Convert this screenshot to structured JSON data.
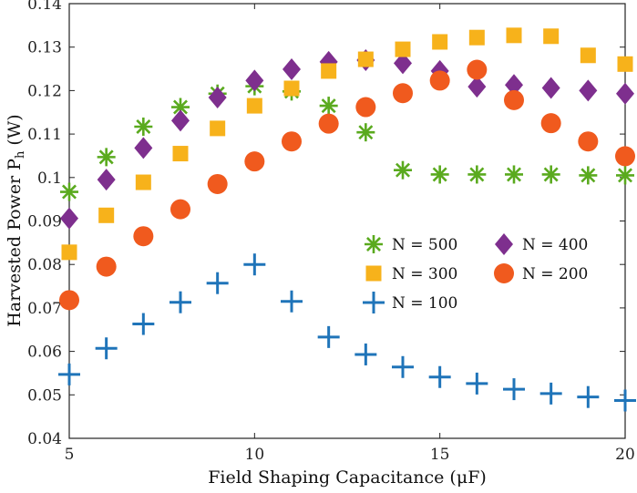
{
  "chart_data": {
    "type": "scatter",
    "title": "",
    "xlabel": "Field Shaping Capacitance (μF)",
    "ylabel": "Harvested Power P",
    "ylabel_subscript": "h",
    "ylabel_unit": "(W)",
    "xlim": [
      5,
      20
    ],
    "ylim": [
      0.04,
      0.14
    ],
    "xticks": [
      5,
      10,
      15,
      20
    ],
    "xtick_labels": [
      "5",
      "10",
      "15",
      "20"
    ],
    "yticks": [
      0.04,
      0.05,
      0.06,
      0.07,
      0.08,
      0.09,
      0.1,
      0.11,
      0.12,
      0.13,
      0.14
    ],
    "ytick_labels": [
      "0.04",
      "0.05",
      "0.06",
      "0.07",
      "0.08",
      "0.09",
      "0.1",
      "0.11",
      "0.12",
      "0.13",
      "0.14"
    ],
    "grid": false,
    "legend_position": "center-right",
    "series": [
      {
        "name": "N = 500",
        "marker": "asterisk",
        "color": "#5aaa1e",
        "x": [
          5,
          6,
          7,
          8,
          9,
          10,
          11,
          12,
          13,
          14,
          15,
          16,
          17,
          18,
          19,
          20
        ],
        "values": [
          0.0967,
          0.1047,
          0.1117,
          0.1162,
          0.1193,
          0.121,
          0.1198,
          0.1165,
          0.1104,
          0.1017,
          0.1007,
          0.1007,
          0.1007,
          0.1007,
          0.1005,
          0.1005
        ]
      },
      {
        "name": "N = 400",
        "marker": "diamond",
        "color": "#7e2f8e",
        "x": [
          5,
          6,
          7,
          8,
          9,
          10,
          11,
          12,
          13,
          14,
          15,
          16,
          17,
          18,
          19,
          20
        ],
        "values": [
          0.0906,
          0.0995,
          0.1068,
          0.1131,
          0.1184,
          0.1223,
          0.1249,
          0.1266,
          0.127,
          0.1263,
          0.1245,
          0.1209,
          0.1213,
          0.1206,
          0.12,
          0.1193
        ]
      },
      {
        "name": "N = 300",
        "marker": "square",
        "color": "#f7b21b",
        "x": [
          5,
          6,
          7,
          8,
          9,
          10,
          11,
          12,
          13,
          14,
          15,
          16,
          17,
          18,
          19,
          20
        ],
        "values": [
          0.0828,
          0.0913,
          0.0989,
          0.1055,
          0.1113,
          0.1165,
          0.1205,
          0.1245,
          0.1272,
          0.1295,
          0.1312,
          0.1322,
          0.1327,
          0.1325,
          0.1281,
          0.1261
        ]
      },
      {
        "name": "N = 200",
        "marker": "circle",
        "color": "#f05a1e",
        "x": [
          5,
          6,
          7,
          8,
          9,
          10,
          11,
          12,
          13,
          14,
          15,
          16,
          17,
          18,
          19,
          20
        ],
        "values": [
          0.0718,
          0.0795,
          0.0865,
          0.0927,
          0.0985,
          0.1037,
          0.1083,
          0.1124,
          0.1162,
          0.1194,
          0.1223,
          0.1248,
          0.1178,
          0.1125,
          0.1083,
          0.1049
        ]
      },
      {
        "name": "N = 100",
        "marker": "plus",
        "color": "#1f74b9",
        "x": [
          5,
          6,
          7,
          8,
          9,
          10,
          11,
          12,
          13,
          14,
          15,
          16,
          17,
          18,
          19,
          20
        ],
        "values": [
          0.0547,
          0.0607,
          0.0663,
          0.0713,
          0.0757,
          0.08,
          0.0715,
          0.0633,
          0.0593,
          0.0564,
          0.0541,
          0.0526,
          0.0513,
          0.0503,
          0.0495,
          0.0487
        ]
      }
    ],
    "legend": {
      "rows": [
        [
          "N = 500",
          "N = 400"
        ],
        [
          "N = 300",
          "N = 200"
        ],
        [
          "N = 100"
        ]
      ]
    }
  }
}
